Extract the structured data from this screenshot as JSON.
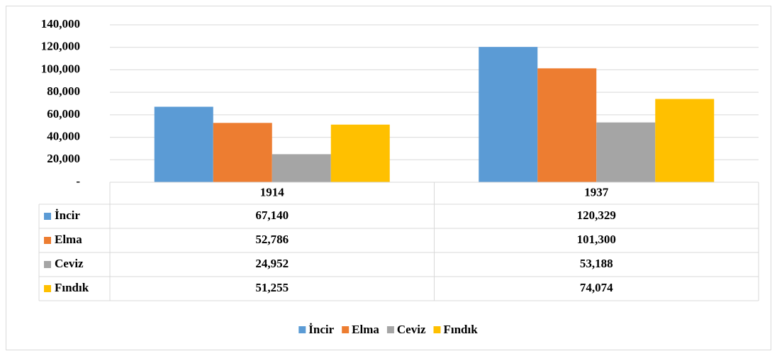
{
  "chart_data": {
    "type": "bar",
    "categories": [
      "1914",
      "1937"
    ],
    "series": [
      {
        "name": "İncir",
        "color": "#5b9bd5",
        "values": [
          67140,
          120329
        ],
        "value_labels": [
          "67,140",
          "120,329"
        ]
      },
      {
        "name": "Elma",
        "color": "#ed7d31",
        "values": [
          52786,
          101300
        ],
        "value_labels": [
          "52,786",
          "101,300"
        ]
      },
      {
        "name": "Ceviz",
        "color": "#a5a5a5",
        "values": [
          24952,
          53188
        ],
        "value_labels": [
          "24,952",
          "53,188"
        ]
      },
      {
        "name": "Fındık",
        "color": "#ffc000",
        "values": [
          51255,
          74074
        ],
        "value_labels": [
          "51,255",
          "74,074"
        ]
      }
    ],
    "ylim": [
      0,
      140000
    ],
    "yticks": [
      {
        "value": 0,
        "label": "-"
      },
      {
        "value": 20000,
        "label": "20,000"
      },
      {
        "value": 40000,
        "label": "40,000"
      },
      {
        "value": 60000,
        "label": "60,000"
      },
      {
        "value": 80000,
        "label": "80,000"
      },
      {
        "value": 100000,
        "label": "100,000"
      },
      {
        "value": 120000,
        "label": "120,000"
      },
      {
        "value": 140000,
        "label": "140,000"
      }
    ],
    "grid": true,
    "legend": "bottom"
  }
}
